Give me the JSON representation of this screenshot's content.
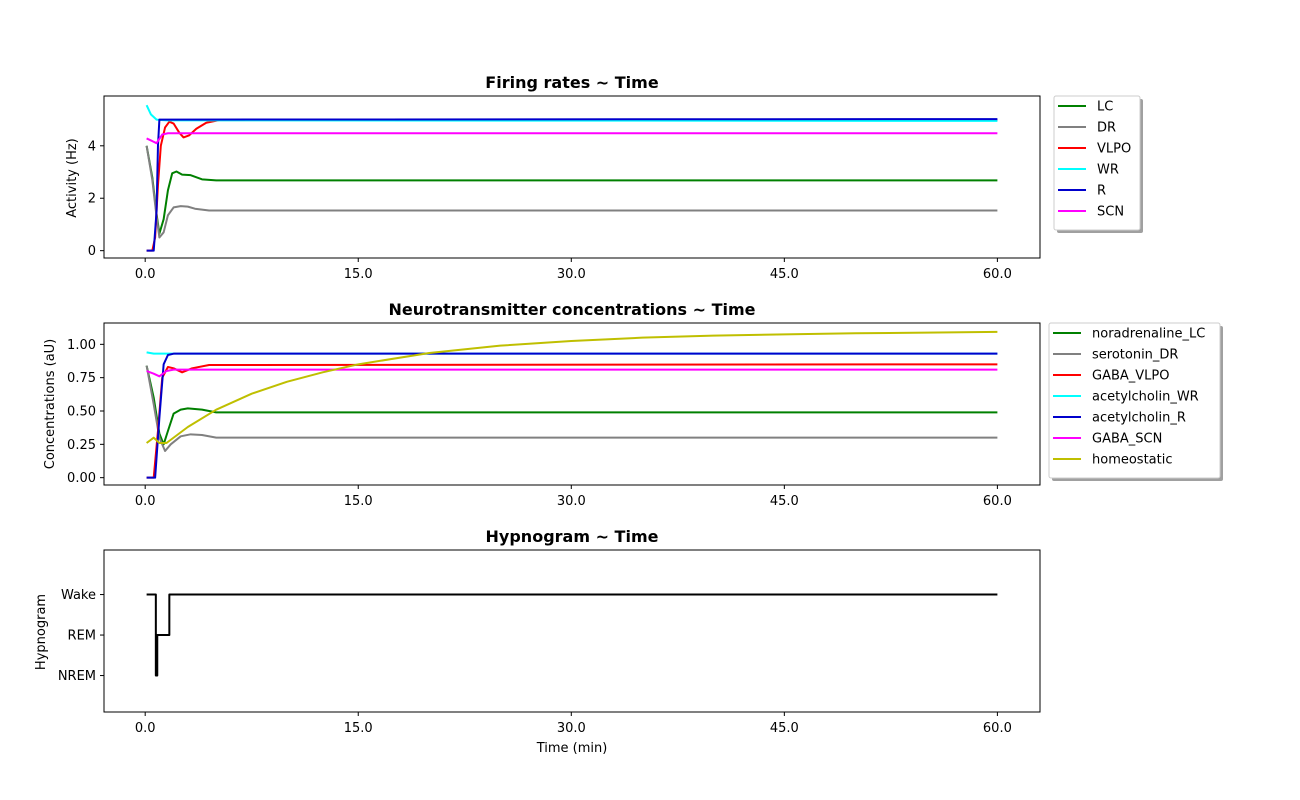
{
  "chart_data": [
    {
      "type": "line",
      "title": "Firing rates ~ Time",
      "xlabel": "",
      "ylabel": "Activity (Hz)",
      "xlim": [
        -2.9,
        63.0
      ],
      "ylim": [
        -0.28,
        5.9
      ],
      "xticks": [
        0.0,
        15.0,
        30.0,
        45.0,
        60.0
      ],
      "xtick_labels": [
        "0.0",
        "15.0",
        "30.0",
        "45.0",
        "60.0"
      ],
      "yticks": [
        0,
        2,
        4
      ],
      "ytick_labels": [
        "0",
        "2",
        "4"
      ],
      "legend_placement": "outside-right-top",
      "series": [
        {
          "name": "LC",
          "color": "#008000",
          "points": [
            [
              0.1,
              4.0
            ],
            [
              0.5,
              2.8
            ],
            [
              0.8,
              1.4
            ],
            [
              1.0,
              0.65
            ],
            [
              1.3,
              1.2
            ],
            [
              1.6,
              2.3
            ],
            [
              1.9,
              2.95
            ],
            [
              2.2,
              3.02
            ],
            [
              2.6,
              2.9
            ],
            [
              3.2,
              2.88
            ],
            [
              4.0,
              2.72
            ],
            [
              5.0,
              2.68
            ],
            [
              60.0,
              2.68
            ]
          ]
        },
        {
          "name": "DR",
          "color": "#808080",
          "points": [
            [
              0.1,
              4.0
            ],
            [
              0.5,
              2.7
            ],
            [
              0.8,
              1.3
            ],
            [
              1.0,
              0.5
            ],
            [
              1.3,
              0.7
            ],
            [
              1.6,
              1.35
            ],
            [
              2.0,
              1.65
            ],
            [
              2.5,
              1.7
            ],
            [
              3.0,
              1.68
            ],
            [
              3.5,
              1.6
            ],
            [
              4.5,
              1.53
            ],
            [
              60.0,
              1.53
            ]
          ]
        },
        {
          "name": "VLPO",
          "color": "#ff0000",
          "points": [
            [
              0.1,
              0.0
            ],
            [
              0.5,
              0.0
            ],
            [
              0.7,
              0.5
            ],
            [
              0.9,
              2.5
            ],
            [
              1.1,
              4.0
            ],
            [
              1.4,
              4.7
            ],
            [
              1.7,
              4.92
            ],
            [
              2.0,
              4.85
            ],
            [
              2.4,
              4.5
            ],
            [
              2.7,
              4.32
            ],
            [
              3.1,
              4.4
            ],
            [
              3.6,
              4.65
            ],
            [
              4.3,
              4.88
            ],
            [
              5.2,
              4.98
            ],
            [
              60.0,
              4.98
            ]
          ]
        },
        {
          "name": "WR",
          "color": "#00ffff",
          "points": [
            [
              0.1,
              5.55
            ],
            [
              0.4,
              5.2
            ],
            [
              0.8,
              5.0
            ],
            [
              1.5,
              4.97
            ],
            [
              60.0,
              4.95
            ]
          ]
        },
        {
          "name": "R",
          "color": "#0000cc",
          "points": [
            [
              0.1,
              0.0
            ],
            [
              0.6,
              0.0
            ],
            [
              0.8,
              1.5
            ],
            [
              0.9,
              4.0
            ],
            [
              1.0,
              5.0
            ],
            [
              60.0,
              5.02
            ]
          ]
        },
        {
          "name": "SCN",
          "color": "#ff00ff",
          "points": [
            [
              0.1,
              4.28
            ],
            [
              0.5,
              4.18
            ],
            [
              0.8,
              4.1
            ],
            [
              1.2,
              4.43
            ],
            [
              1.6,
              4.48
            ],
            [
              60.0,
              4.48
            ]
          ]
        }
      ]
    },
    {
      "type": "line",
      "title": "Neurotransmitter concentrations ~ Time",
      "xlabel": "",
      "ylabel": "Concentrations (aU)",
      "xlim": [
        -2.9,
        63.0
      ],
      "ylim": [
        -0.055,
        1.16
      ],
      "xticks": [
        0.0,
        15.0,
        30.0,
        45.0,
        60.0
      ],
      "xtick_labels": [
        "0.0",
        "15.0",
        "30.0",
        "45.0",
        "60.0"
      ],
      "yticks": [
        0.0,
        0.25,
        0.5,
        0.75,
        1.0
      ],
      "ytick_labels": [
        "0.00",
        "0.25",
        "0.50",
        "0.75",
        "1.00"
      ],
      "legend_placement": "outside-right-top",
      "series": [
        {
          "name": "noradrenaline_LC",
          "color": "#008000",
          "points": [
            [
              0.1,
              0.84
            ],
            [
              0.6,
              0.6
            ],
            [
              1.0,
              0.33
            ],
            [
              1.3,
              0.25
            ],
            [
              1.6,
              0.35
            ],
            [
              2.0,
              0.48
            ],
            [
              2.5,
              0.51
            ],
            [
              3.0,
              0.52
            ],
            [
              4.0,
              0.51
            ],
            [
              5.0,
              0.49
            ],
            [
              60.0,
              0.49
            ]
          ]
        },
        {
          "name": "serotonin_DR",
          "color": "#808080",
          "points": [
            [
              0.1,
              0.84
            ],
            [
              0.6,
              0.55
            ],
            [
              1.0,
              0.3
            ],
            [
              1.4,
              0.2
            ],
            [
              1.8,
              0.25
            ],
            [
              2.5,
              0.31
            ],
            [
              3.2,
              0.325
            ],
            [
              4.0,
              0.32
            ],
            [
              5.0,
              0.3
            ],
            [
              60.0,
              0.3
            ]
          ]
        },
        {
          "name": "GABA_VLPO",
          "color": "#ff0000",
          "points": [
            [
              0.1,
              0.0
            ],
            [
              0.6,
              0.0
            ],
            [
              0.9,
              0.35
            ],
            [
              1.2,
              0.75
            ],
            [
              1.6,
              0.83
            ],
            [
              2.0,
              0.82
            ],
            [
              2.6,
              0.79
            ],
            [
              3.3,
              0.82
            ],
            [
              4.5,
              0.845
            ],
            [
              60.0,
              0.85
            ]
          ]
        },
        {
          "name": "acetylcholin_WR",
          "color": "#00ffff",
          "points": [
            [
              0.1,
              0.94
            ],
            [
              0.6,
              0.93
            ],
            [
              1.2,
              0.93
            ],
            [
              60.0,
              0.93
            ]
          ]
        },
        {
          "name": "acetylcholin_R",
          "color": "#0000cc",
          "points": [
            [
              0.1,
              0.0
            ],
            [
              0.7,
              0.0
            ],
            [
              1.0,
              0.45
            ],
            [
              1.3,
              0.85
            ],
            [
              1.6,
              0.92
            ],
            [
              2.0,
              0.93
            ],
            [
              60.0,
              0.93
            ]
          ]
        },
        {
          "name": "GABA_SCN",
          "color": "#ff00ff",
          "points": [
            [
              0.1,
              0.8
            ],
            [
              0.6,
              0.78
            ],
            [
              1.0,
              0.76
            ],
            [
              1.5,
              0.8
            ],
            [
              2.0,
              0.81
            ],
            [
              60.0,
              0.81
            ]
          ]
        },
        {
          "name": "homeostatic",
          "color": "#bfbf00",
          "points": [
            [
              0.1,
              0.26
            ],
            [
              0.6,
              0.3
            ],
            [
              1.0,
              0.26
            ],
            [
              1.5,
              0.26
            ],
            [
              3.0,
              0.38
            ],
            [
              5.0,
              0.51
            ],
            [
              7.5,
              0.63
            ],
            [
              10.0,
              0.72
            ],
            [
              12.5,
              0.79
            ],
            [
              15.0,
              0.85
            ],
            [
              20.0,
              0.935
            ],
            [
              25.0,
              0.99
            ],
            [
              30.0,
              1.025
            ],
            [
              35.0,
              1.05
            ],
            [
              40.0,
              1.065
            ],
            [
              45.0,
              1.075
            ],
            [
              50.0,
              1.083
            ],
            [
              55.0,
              1.088
            ],
            [
              60.0,
              1.093
            ]
          ]
        }
      ]
    },
    {
      "type": "line",
      "title": "Hypnogram ~ Time",
      "xlabel": "Time (min)",
      "ylabel": "Hypnogram",
      "xlim": [
        -2.9,
        63.0
      ],
      "ylim": [
        -0.9,
        3.1
      ],
      "xticks": [
        0.0,
        15.0,
        30.0,
        45.0,
        60.0
      ],
      "xtick_labels": [
        "0.0",
        "15.0",
        "30.0",
        "45.0",
        "60.0"
      ],
      "yticks": [
        0,
        1,
        2
      ],
      "ytick_labels": [
        "NREM",
        "REM",
        "Wake"
      ],
      "series": [
        {
          "name": "",
          "color": "#000000",
          "points": [
            [
              0.1,
              2
            ],
            [
              0.75,
              2
            ],
            [
              0.75,
              0
            ],
            [
              0.85,
              0
            ],
            [
              0.85,
              1
            ],
            [
              1.7,
              1
            ],
            [
              1.7,
              2
            ],
            [
              60.0,
              2
            ]
          ]
        }
      ]
    }
  ]
}
